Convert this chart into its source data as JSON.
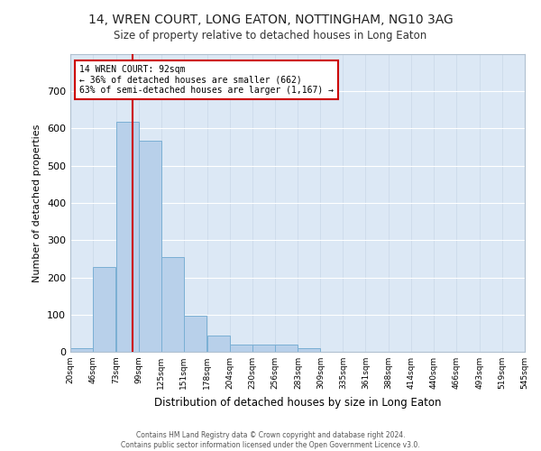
{
  "title": "14, WREN COURT, LONG EATON, NOTTINGHAM, NG10 3AG",
  "subtitle": "Size of property relative to detached houses in Long Eaton",
  "xlabel": "Distribution of detached houses by size in Long Eaton",
  "ylabel": "Number of detached properties",
  "bar_color": "#b8d0ea",
  "bar_edge_color": "#7aafd4",
  "background_color": "#dce8f5",
  "fig_background": "#ffffff",
  "grid_color": "#ffffff",
  "bins": [
    20,
    46,
    73,
    99,
    125,
    151,
    178,
    204,
    230,
    256,
    283,
    309,
    335,
    361,
    388,
    414,
    440,
    466,
    493,
    519,
    545
  ],
  "bin_labels": [
    "20sqm",
    "46sqm",
    "73sqm",
    "99sqm",
    "125sqm",
    "151sqm",
    "178sqm",
    "204sqm",
    "230sqm",
    "256sqm",
    "283sqm",
    "309sqm",
    "335sqm",
    "361sqm",
    "388sqm",
    "414sqm",
    "440sqm",
    "466sqm",
    "493sqm",
    "519sqm",
    "545sqm"
  ],
  "values": [
    10,
    228,
    618,
    568,
    255,
    97,
    43,
    20,
    20,
    19,
    10,
    0,
    0,
    0,
    0,
    0,
    0,
    0,
    0,
    0
  ],
  "property_size": 92,
  "property_line_color": "#cc0000",
  "annotation_text": "14 WREN COURT: 92sqm\n← 36% of detached houses are smaller (662)\n63% of semi-detached houses are larger (1,167) →",
  "annotation_box_color": "#ffffff",
  "annotation_box_edge": "#cc0000",
  "ylim": [
    0,
    800
  ],
  "yticks": [
    0,
    100,
    200,
    300,
    400,
    500,
    600,
    700,
    800
  ],
  "footer_line1": "Contains HM Land Registry data © Crown copyright and database right 2024.",
  "footer_line2": "Contains public sector information licensed under the Open Government Licence v3.0."
}
